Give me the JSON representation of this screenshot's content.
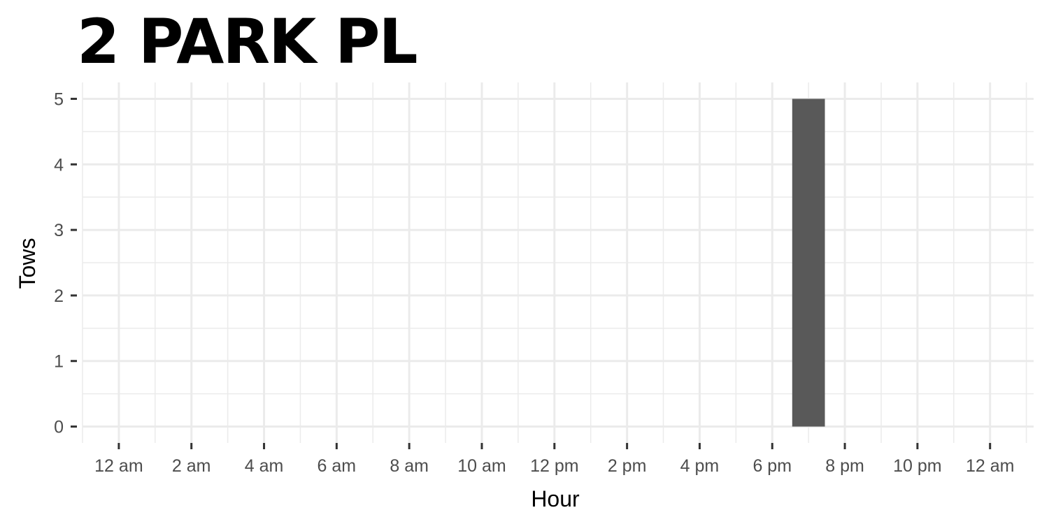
{
  "chart_data": {
    "type": "bar",
    "title": "2 PARK PL",
    "xlabel": "Hour",
    "ylabel": "Tows",
    "x_ticks": [
      {
        "hour": 0,
        "label": "12 am"
      },
      {
        "hour": 2,
        "label": "2 am"
      },
      {
        "hour": 4,
        "label": "4 am"
      },
      {
        "hour": 6,
        "label": "6 am"
      },
      {
        "hour": 8,
        "label": "8 am"
      },
      {
        "hour": 10,
        "label": "10 am"
      },
      {
        "hour": 12,
        "label": "12 pm"
      },
      {
        "hour": 14,
        "label": "2 pm"
      },
      {
        "hour": 16,
        "label": "4 pm"
      },
      {
        "hour": 18,
        "label": "6 pm"
      },
      {
        "hour": 20,
        "label": "8 pm"
      },
      {
        "hour": 22,
        "label": "10 pm"
      },
      {
        "hour": 24,
        "label": "12 am"
      }
    ],
    "y_ticks": [
      0,
      1,
      2,
      3,
      4,
      5
    ],
    "xlim": [
      -1,
      25.2
    ],
    "ylim": [
      -0.25,
      5.25
    ],
    "bars": [
      {
        "hour": 19,
        "value": 5
      }
    ],
    "bar_color": "#595959",
    "grid": true,
    "grid_color": "#ebebeb",
    "background": "#ffffff"
  }
}
